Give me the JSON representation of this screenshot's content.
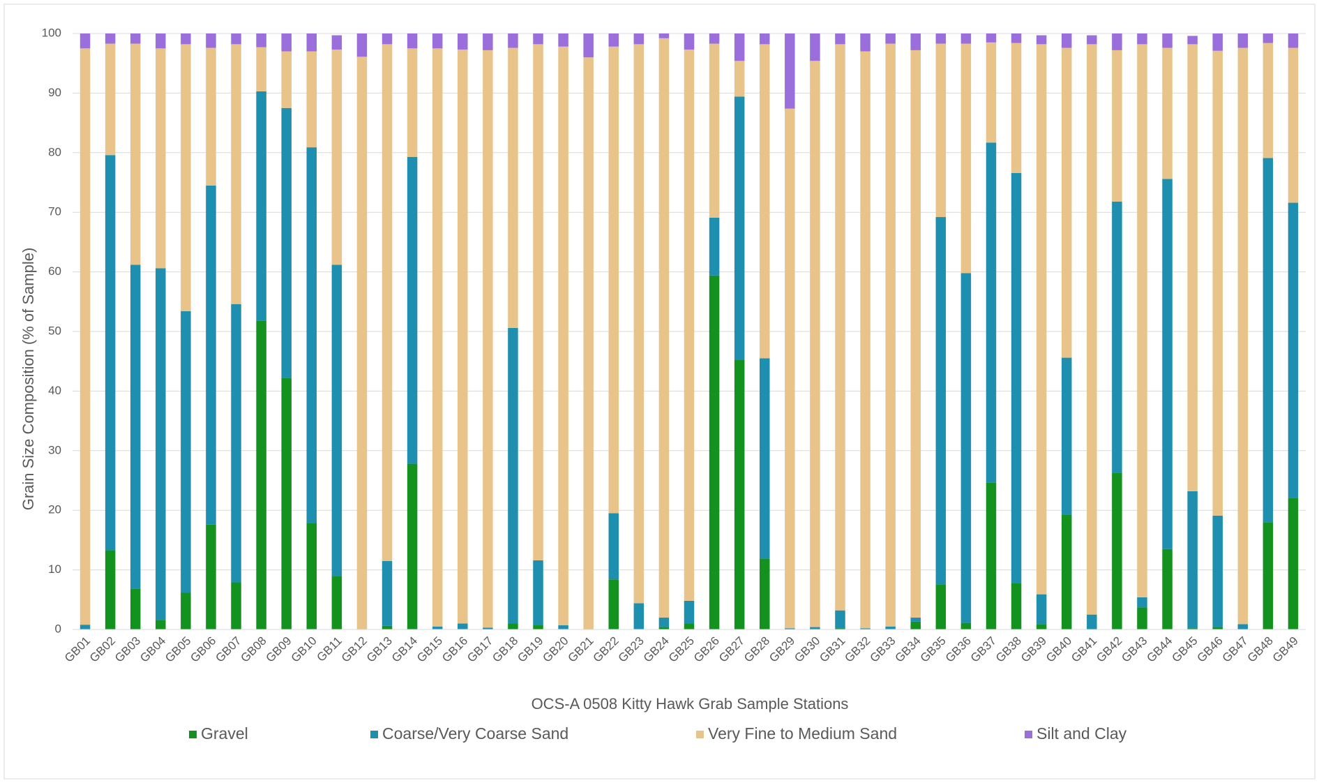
{
  "chart_data": {
    "type": "stacked_bar",
    "xlabel": "OCS-A 0508 Kitty Hawk Grab Sample Stations",
    "ylabel": "Grain Size Composition (% of Sample)",
    "categories": [
      "GB01",
      "GB02",
      "GB03",
      "GB04",
      "GB05",
      "GB06",
      "GB07",
      "GB08",
      "GB09",
      "GB10",
      "GB11",
      "GB12",
      "GB13",
      "GB14",
      "GB15",
      "GB16",
      "GB17",
      "GB18",
      "GB19",
      "GB20",
      "GB21",
      "GB22",
      "GB23",
      "GB24",
      "GB25",
      "GB26",
      "GB27",
      "GB28",
      "GB29",
      "GB30",
      "GB31",
      "GB32",
      "GB33",
      "GB34",
      "GB35",
      "GB36",
      "GB37",
      "GB38",
      "GB39",
      "GB40",
      "GB41",
      "GB42",
      "GB43",
      "GB44",
      "GB45",
      "GB46",
      "GB47",
      "GB48",
      "GB49"
    ],
    "series": [
      {
        "name": "Gravel",
        "color": "#13921f",
        "values": [
          0,
          13.3,
          6.8,
          1.6,
          6.2,
          17.6,
          7.9,
          51.8,
          42.2,
          17.8,
          9.0,
          0,
          0.6,
          27.8,
          0.1,
          0.1,
          0,
          1.0,
          0.7,
          0.1,
          0,
          8.4,
          0.1,
          0.4,
          1.0,
          59.4,
          45.3,
          11.9,
          0,
          0,
          0.2,
          0,
          0.1,
          1.3,
          7.5,
          1.1,
          24.6,
          7.8,
          0.9,
          19.3,
          0,
          26.3,
          3.7,
          13.5,
          0.2,
          0.4,
          0,
          18.0,
          22.1
        ]
      },
      {
        "name": "Coarse/Very Coarse Sand",
        "color": "#1f8fb0",
        "values": [
          0.8,
          66.3,
          54.4,
          59.0,
          47.2,
          56.9,
          46.7,
          38.5,
          45.3,
          63.1,
          52.2,
          0,
          10.9,
          51.5,
          0.4,
          0.9,
          0.3,
          49.6,
          10.9,
          0.6,
          0,
          11.1,
          4.3,
          1.6,
          3.8,
          9.7,
          44.1,
          33.6,
          0.2,
          0.4,
          3.0,
          0.2,
          0.4,
          0.7,
          61.7,
          58.7,
          57.1,
          68.8,
          5.0,
          26.3,
          2.5,
          45.5,
          1.7,
          62.1,
          23.0,
          18.7,
          0.9,
          61.1,
          49.5
        ]
      },
      {
        "name": "Very Fine to Medium Sand",
        "color": "#e8c48a",
        "values": [
          96.7,
          18.7,
          37.1,
          36.9,
          44.8,
          23.1,
          43.6,
          7.4,
          9.5,
          16.1,
          36.1,
          96.1,
          86.7,
          18.2,
          97.0,
          96.3,
          96.9,
          47.0,
          86.6,
          97.1,
          96.0,
          78.3,
          93.8,
          97.2,
          92.5,
          29.2,
          6.0,
          52.7,
          87.2,
          95.0,
          95.0,
          96.8,
          97.8,
          95.2,
          29.1,
          38.5,
          16.8,
          21.8,
          92.3,
          52.0,
          95.7,
          25.4,
          92.8,
          22.0,
          75.0,
          78.0,
          96.7,
          19.3,
          26.0
        ]
      },
      {
        "name": "Silt and Clay",
        "color": "#9a6fdc",
        "values": [
          2.5,
          1.7,
          1.7,
          2.5,
          1.8,
          2.4,
          1.8,
          2.3,
          3.0,
          3.0,
          2.4,
          3.9,
          1.8,
          2.5,
          2.5,
          2.7,
          2.8,
          2.4,
          1.8,
          2.2,
          4.0,
          2.2,
          1.8,
          0.8,
          2.7,
          1.7,
          4.6,
          1.8,
          12.6,
          4.6,
          1.8,
          3.0,
          1.7,
          2.8,
          1.7,
          1.7,
          1.5,
          1.6,
          1.5,
          2.4,
          1.5,
          2.8,
          1.8,
          2.4,
          1.4,
          2.9,
          2.4,
          1.6,
          2.4
        ]
      }
    ],
    "ylim": [
      0,
      100
    ],
    "yticks": [
      0,
      10,
      20,
      30,
      40,
      50,
      60,
      70,
      80,
      90,
      100
    ],
    "grid": true,
    "legend": "bottom"
  }
}
